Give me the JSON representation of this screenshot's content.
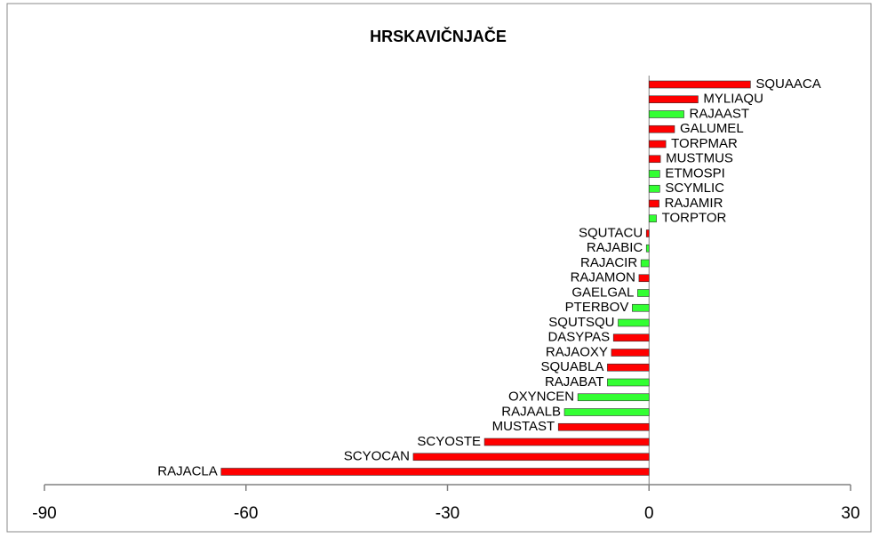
{
  "chart_data": {
    "type": "bar",
    "orientation": "horizontal",
    "title": "HRSKAVIČNJAČE",
    "categories": [
      "SQUAACA",
      "MYLIAQU",
      "RAJAAST",
      "GALUMEL",
      "TORPMAR",
      "MUSTMUS",
      "ETMOSPI",
      "SCYMLIC",
      "RAJAMIR",
      "TORPTOR",
      "SQUTACU",
      "RAJABIC",
      "RAJACIR",
      "RAJAMON",
      "GAELGAL",
      "PTERBOV",
      "SQUTSQU",
      "DASYPAS",
      "RAJAOXY",
      "SQUABLA",
      "RAJABAT",
      "OXYNCEN",
      "RAJAALB",
      "MUSTAST",
      "SCYOSTE",
      "SCYOCAN",
      "RAJACLA"
    ],
    "values": [
      15.1,
      7.3,
      5.2,
      3.8,
      2.5,
      1.7,
      1.6,
      1.6,
      1.5,
      1.1,
      -0.4,
      -0.4,
      -1.2,
      -1.5,
      -1.7,
      -2.5,
      -4.6,
      -5.3,
      -5.6,
      -6.2,
      -6.2,
      -10.6,
      -12.6,
      -13.5,
      -24.5,
      -35.1,
      -63.7
    ],
    "colors": [
      "#ff0000",
      "#ff0000",
      "#33ff33",
      "#ff0000",
      "#ff0000",
      "#ff0000",
      "#33ff33",
      "#33ff33",
      "#ff0000",
      "#33ff33",
      "#ff0000",
      "#33ff33",
      "#33ff33",
      "#ff0000",
      "#33ff33",
      "#33ff33",
      "#33ff33",
      "#ff0000",
      "#ff0000",
      "#ff0000",
      "#33ff33",
      "#33ff33",
      "#33ff33",
      "#ff0000",
      "#ff0000",
      "#ff0000",
      "#ff0000"
    ],
    "xlim": [
      -90,
      30
    ],
    "xticks": [
      -90,
      -60,
      -30,
      0,
      30
    ]
  }
}
